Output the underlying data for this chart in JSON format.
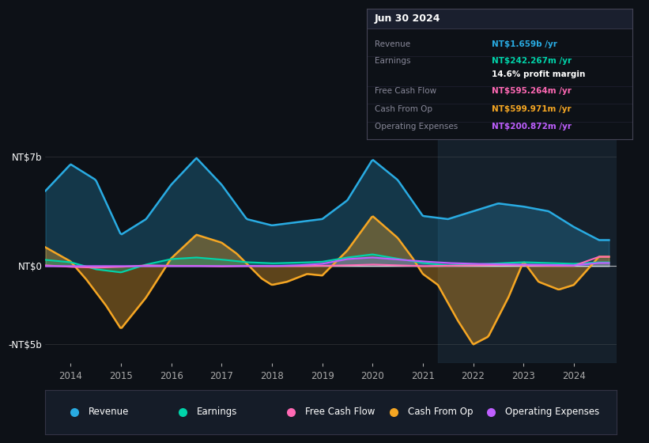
{
  "bg_color": "#0d1117",
  "plot_bg_color": "#0d1117",
  "title": "Jun 30 2024",
  "revenue_color": "#29abe2",
  "earnings_color": "#00d4aa",
  "free_cash_flow_color": "#ff69b4",
  "cash_from_op_color": "#f5a623",
  "operating_expenses_color": "#bf5fff",
  "ytick_labels": [
    "-NT$5b",
    "NT$0",
    "NT$7b"
  ],
  "xtick_years": [
    2014,
    2015,
    2016,
    2017,
    2018,
    2019,
    2020,
    2021,
    2022,
    2023,
    2024
  ],
  "info_box": {
    "date": "Jun 30 2024",
    "rows": [
      {
        "label": "Revenue",
        "value": "NT$1.659b /yr",
        "color": "#29abe2"
      },
      {
        "label": "Earnings",
        "value": "NT$242.267m /yr",
        "color": "#00d4aa"
      },
      {
        "label": "",
        "value": "14.6% profit margin",
        "color": "#ffffff"
      },
      {
        "label": "Free Cash Flow",
        "value": "NT$595.264m /yr",
        "color": "#ff69b4"
      },
      {
        "label": "Cash From Op",
        "value": "NT$599.971m /yr",
        "color": "#f5a623"
      },
      {
        "label": "Operating Expenses",
        "value": "NT$200.872m /yr",
        "color": "#bf5fff"
      }
    ]
  },
  "legend": [
    {
      "label": "Revenue",
      "color": "#29abe2"
    },
    {
      "label": "Earnings",
      "color": "#00d4aa"
    },
    {
      "label": "Free Cash Flow",
      "color": "#ff69b4"
    },
    {
      "label": "Cash From Op",
      "color": "#f5a623"
    },
    {
      "label": "Operating Expenses",
      "color": "#bf5fff"
    }
  ]
}
